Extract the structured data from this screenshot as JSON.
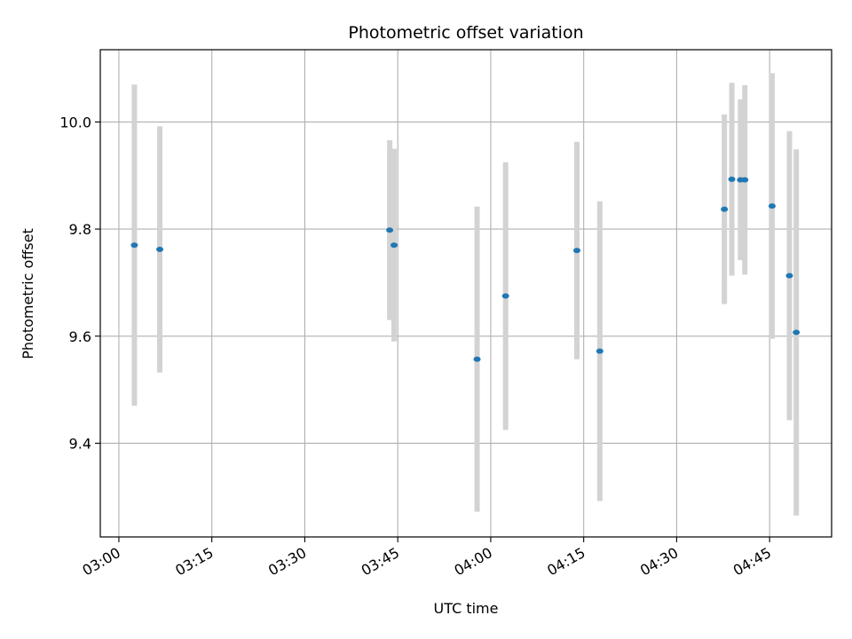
{
  "chart_data": {
    "type": "scatter",
    "title": "Photometric offset variation",
    "xlabel": "UTC time",
    "ylabel": "Photometric offset",
    "x_ticks": [
      "03:00",
      "03:15",
      "03:30",
      "03:45",
      "04:00",
      "04:15",
      "04:30",
      "04:45"
    ],
    "y_ticks": [
      "9.4",
      "9.6",
      "9.8",
      "10.0"
    ],
    "xlim": [
      "02:57",
      "04:55"
    ],
    "ylim": [
      9.225,
      10.135
    ],
    "grid": true,
    "colors": {
      "marker": "#1f77b4",
      "errorbar": "#d3d3d3",
      "grid": "#b0b0b0"
    },
    "points": [
      {
        "t": "03:02:30",
        "y": 9.77,
        "yerr": 0.3
      },
      {
        "t": "03:06:36",
        "y": 9.762,
        "yerr": 0.23
      },
      {
        "t": "03:43:42",
        "y": 9.798,
        "yerr": 0.168
      },
      {
        "t": "03:44:24",
        "y": 9.77,
        "yerr": 0.18
      },
      {
        "t": "03:57:48",
        "y": 9.557,
        "yerr": 0.285
      },
      {
        "t": "04:02:24",
        "y": 9.675,
        "yerr": 0.25
      },
      {
        "t": "04:13:54",
        "y": 9.76,
        "yerr": 0.203
      },
      {
        "t": "04:17:36",
        "y": 9.572,
        "yerr": 0.28
      },
      {
        "t": "04:37:42",
        "y": 9.837,
        "yerr": 0.177
      },
      {
        "t": "04:38:54",
        "y": 9.893,
        "yerr": 0.18
      },
      {
        "t": "04:40:18",
        "y": 9.892,
        "yerr": 0.15
      },
      {
        "t": "04:41:00",
        "y": 9.892,
        "yerr": 0.177
      },
      {
        "t": "04:45:24",
        "y": 9.843,
        "yerr": 0.248
      },
      {
        "t": "04:48:12",
        "y": 9.713,
        "yerr": 0.27
      },
      {
        "t": "04:49:18",
        "y": 9.607,
        "yerr": 0.342
      }
    ]
  }
}
